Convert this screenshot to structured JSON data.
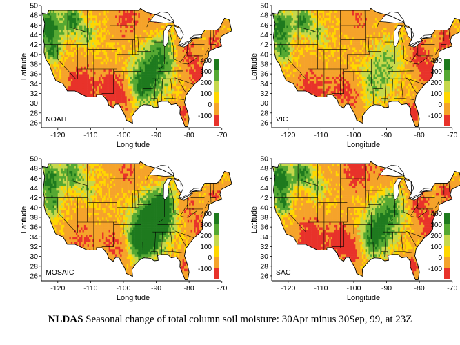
{
  "figure": {
    "caption_bold": "NLDAS",
    "caption_rest": " Seasonal change of total column soil moisture: 30Apr minus 30Sep, 99, at 23Z"
  },
  "axes": {
    "xlabel": "Longitude",
    "ylabel": "Latitude",
    "x_ticks": [
      "-120",
      "-110",
      "-100",
      "-90",
      "-80",
      "-70"
    ],
    "x_tick_values": [
      -120,
      -110,
      -100,
      -90,
      -80,
      -70
    ],
    "y_ticks": [
      "26",
      "28",
      "30",
      "32",
      "34",
      "36",
      "38",
      "40",
      "42",
      "44",
      "46",
      "48",
      "50"
    ],
    "y_tick_values": [
      26,
      28,
      30,
      32,
      34,
      36,
      38,
      40,
      42,
      44,
      46,
      48,
      50
    ],
    "xlim": [
      -125,
      -67
    ],
    "ylim": [
      25,
      50
    ]
  },
  "legend": {
    "labels": [
      "400",
      "300",
      "200",
      "100",
      "0",
      "-100"
    ],
    "colors": [
      "#1e7a1e",
      "#55a832",
      "#c6d84b",
      "#ffd700",
      "#f5a32a",
      "#e8322a"
    ]
  },
  "palette": {
    "water": "#ffffff",
    "land_dry": "#e8322a",
    "land_mid": "#f5a32a",
    "land_wet": "#55a832",
    "land_very_wet": "#1e7a1e",
    "yellow": "#ffd700",
    "outline": "#000000"
  },
  "panels": [
    {
      "id": "noah",
      "label": "NOAH"
    },
    {
      "id": "vic",
      "label": "VIC"
    },
    {
      "id": "mosaic",
      "label": "MOSAIC"
    },
    {
      "id": "sac",
      "label": "SAC"
    }
  ]
}
